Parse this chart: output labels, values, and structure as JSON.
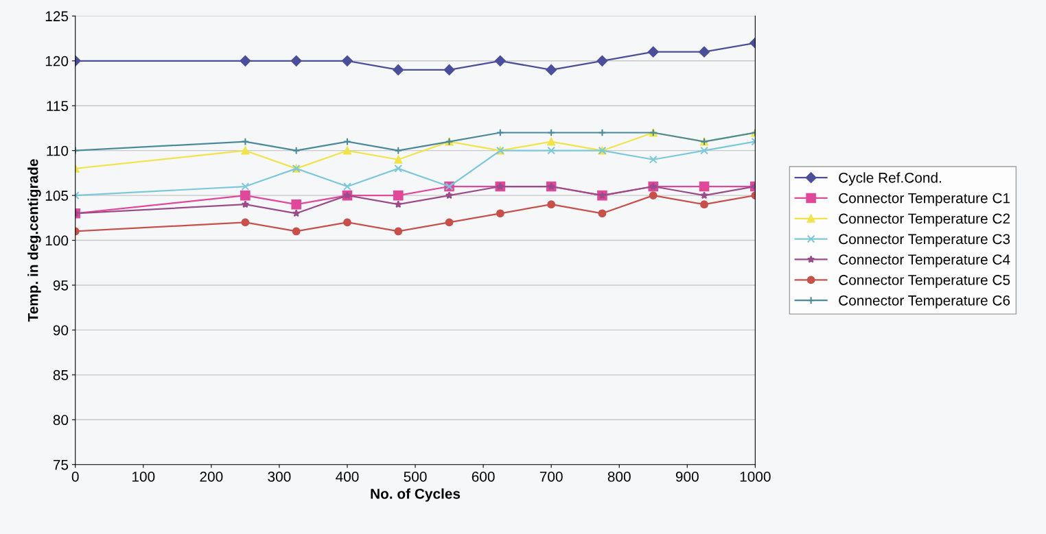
{
  "chart_data": {
    "type": "line",
    "xlabel": "No. of Cycles",
    "ylabel": "Temp. in deg.centigrade",
    "x": [
      0,
      250,
      325,
      400,
      475,
      550,
      625,
      700,
      775,
      850,
      925,
      1000
    ],
    "xlim": [
      0,
      1000
    ],
    "xticks": [
      0,
      100,
      200,
      300,
      400,
      500,
      600,
      700,
      800,
      900,
      1000
    ],
    "ylim": [
      75,
      125
    ],
    "yticks": [
      75,
      80,
      85,
      90,
      95,
      100,
      105,
      110,
      115,
      120,
      125
    ],
    "grid": "y",
    "legend": "right",
    "line_style": "solid",
    "series": [
      {
        "name": "Cycle Ref.Cond.",
        "color": "#4b4f9a",
        "marker": "diamond",
        "values": [
          120,
          120,
          120,
          120,
          119,
          119,
          120,
          119,
          120,
          121,
          121,
          122
        ]
      },
      {
        "name": "Connector Temperature C1",
        "color": "#e0489a",
        "marker": "square",
        "values": [
          103,
          105,
          104,
          105,
          105,
          106,
          106,
          106,
          105,
          106,
          106,
          106
        ]
      },
      {
        "name": "Connector Temperature C2",
        "color": "#f0e44a",
        "marker": "triangle",
        "values": [
          108,
          110,
          108,
          110,
          109,
          111,
          110,
          111,
          110,
          112,
          111,
          112
        ]
      },
      {
        "name": "Connector Temperature C3",
        "color": "#7cc8da",
        "marker": "cross",
        "values": [
          105,
          106,
          108,
          106,
          108,
          106,
          110,
          110,
          110,
          109,
          110,
          111
        ]
      },
      {
        "name": "Connector Temperature C4",
        "color": "#9a4b8a",
        "marker": "star",
        "values": [
          103,
          104,
          103,
          105,
          104,
          105,
          106,
          106,
          105,
          106,
          105,
          106
        ]
      },
      {
        "name": "Connector Temperature C5",
        "color": "#c8504a",
        "marker": "circle",
        "values": [
          101,
          102,
          101,
          102,
          101,
          102,
          103,
          104,
          103,
          105,
          104,
          105
        ]
      },
      {
        "name": "Connector Temperature C6",
        "color": "#4a8a9a",
        "marker": "cross",
        "values": [
          110,
          111,
          110,
          111,
          110,
          111,
          112,
          112,
          112,
          112,
          111,
          112
        ]
      }
    ]
  }
}
